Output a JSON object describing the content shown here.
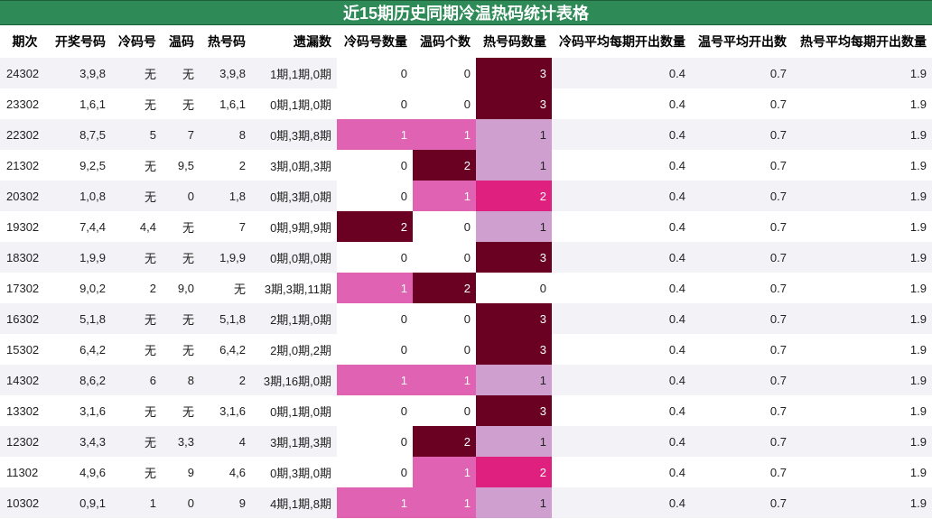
{
  "title": "近15期历史同期冷温热码统计表格",
  "headers": [
    "期次",
    "开奖号码",
    "冷码号",
    "温码",
    "热号码",
    "遗漏数",
    "冷码号数量",
    "温码个数",
    "热号码数量",
    "冷码平均每期开出数量",
    "温号平均开出数",
    "热号平均每期开出数量"
  ],
  "rows": [
    [
      "24302",
      "3,9,8",
      "无",
      "无",
      "3,9,8",
      "1期,1期,0期",
      "0",
      "0",
      "3",
      "0.4",
      "0.7",
      "1.9"
    ],
    [
      "23302",
      "1,6,1",
      "无",
      "无",
      "1,6,1",
      "0期,1期,0期",
      "0",
      "0",
      "3",
      "0.4",
      "0.7",
      "1.9"
    ],
    [
      "22302",
      "8,7,5",
      "5",
      "7",
      "8",
      "0期,3期,8期",
      "1",
      "1",
      "1",
      "0.4",
      "0.7",
      "1.9"
    ],
    [
      "21302",
      "9,2,5",
      "无",
      "9,5",
      "2",
      "3期,0期,3期",
      "0",
      "2",
      "1",
      "0.4",
      "0.7",
      "1.9"
    ],
    [
      "20302",
      "1,0,8",
      "无",
      "0",
      "1,8",
      "0期,3期,0期",
      "0",
      "1",
      "2",
      "0.4",
      "0.7",
      "1.9"
    ],
    [
      "19302",
      "7,4,4",
      "4,4",
      "无",
      "7",
      "0期,9期,9期",
      "2",
      "0",
      "1",
      "0.4",
      "0.7",
      "1.9"
    ],
    [
      "18302",
      "1,9,9",
      "无",
      "无",
      "1,9,9",
      "0期,0期,0期",
      "0",
      "0",
      "3",
      "0.4",
      "0.7",
      "1.9"
    ],
    [
      "17302",
      "9,0,2",
      "2",
      "9,0",
      "无",
      "3期,3期,11期",
      "1",
      "2",
      "0",
      "0.4",
      "0.7",
      "1.9"
    ],
    [
      "16302",
      "5,1,8",
      "无",
      "无",
      "5,1,8",
      "2期,1期,0期",
      "0",
      "0",
      "3",
      "0.4",
      "0.7",
      "1.9"
    ],
    [
      "15302",
      "6,4,2",
      "无",
      "无",
      "6,4,2",
      "2期,0期,2期",
      "0",
      "0",
      "3",
      "0.4",
      "0.7",
      "1.9"
    ],
    [
      "14302",
      "8,6,2",
      "6",
      "8",
      "2",
      "3期,16期,0期",
      "1",
      "1",
      "1",
      "0.4",
      "0.7",
      "1.9"
    ],
    [
      "13302",
      "3,1,6",
      "无",
      "无",
      "3,1,6",
      "0期,1期,0期",
      "0",
      "0",
      "3",
      "0.4",
      "0.7",
      "1.9"
    ],
    [
      "12302",
      "3,4,3",
      "无",
      "3,3",
      "4",
      "3期,1期,3期",
      "0",
      "2",
      "1",
      "0.4",
      "0.7",
      "1.9"
    ],
    [
      "11302",
      "4,9,6",
      "无",
      "9",
      "4,6",
      "0期,3期,0期",
      "0",
      "1",
      "2",
      "0.4",
      "0.7",
      "1.9"
    ],
    [
      "10302",
      "0,9,1",
      "1",
      "0",
      "9",
      "4期,1期,8期",
      "1",
      "1",
      "1",
      "0.4",
      "0.7",
      "1.9"
    ]
  ],
  "colors": {
    "title_bg": "#2e8b57",
    "heat_zero_cold_warm": "#ffffff",
    "heat_1": "#df62b3",
    "heat_2_dark": "#6a0022",
    "heat_hot_1": "#cfa0cf",
    "heat_hot_2": "#e0207f",
    "heat_hot_3": "#6a0022"
  }
}
